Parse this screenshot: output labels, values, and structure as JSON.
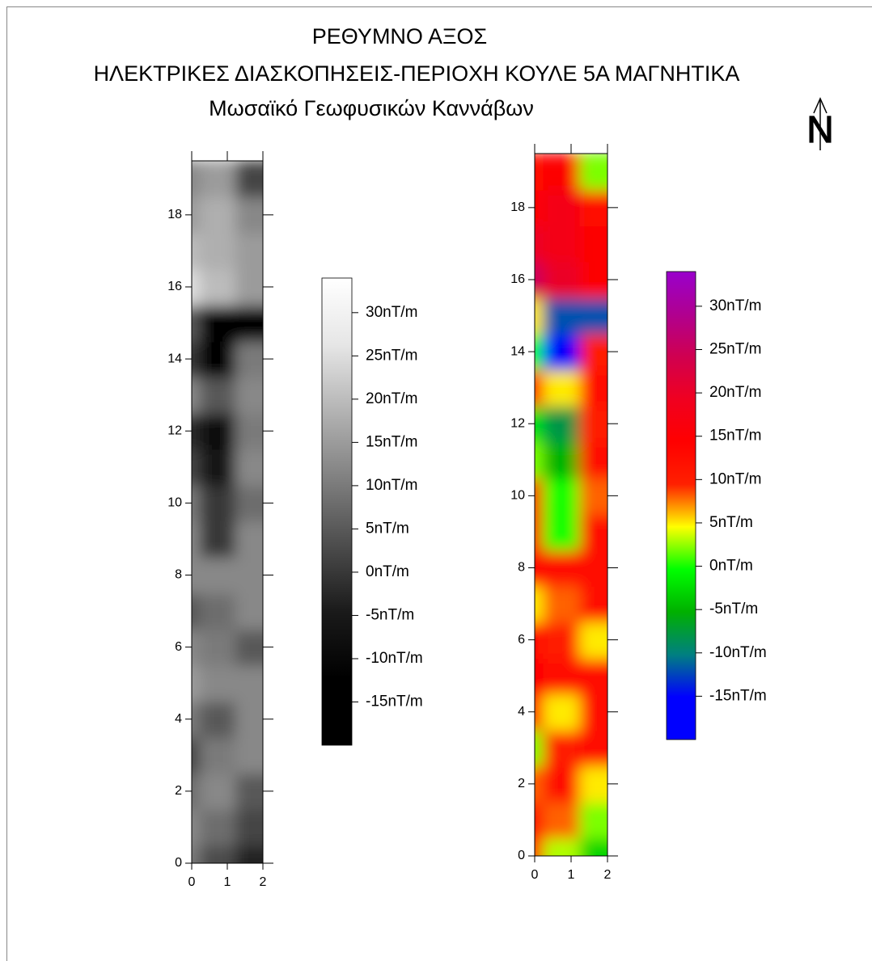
{
  "title": [
    "ΡΕΘΥΜΝΟ ΑΞΟΣ",
    "ΗΛΕΚΤΡΙΚΕΣ ΔΙΑΣΚΟΠΗΣΕΙΣ-ΠΕΡΙΟΧΗ ΚΟΥΛΕ 5Α ΜΑΓΝΗΤΙΚΑ",
    "Μωσαϊκό Γεωφυσικών Καννάβων"
  ],
  "north": "N",
  "chart_data": [
    {
      "type": "heatmap",
      "xlim": [
        0,
        2
      ],
      "ylim": [
        0,
        19.5
      ],
      "xticks": [
        0,
        1,
        2
      ],
      "yticks": [
        0,
        2,
        4,
        6,
        8,
        10,
        12,
        14,
        16,
        18
      ],
      "x": [
        0,
        1,
        2
      ],
      "y": [
        0,
        1,
        2,
        3,
        4,
        5,
        6,
        7,
        8,
        9,
        10,
        11,
        12,
        13,
        14,
        15,
        16,
        17,
        18,
        19
      ],
      "z": [
        [
          10,
          3,
          -3
        ],
        [
          12,
          8,
          2
        ],
        [
          8,
          12,
          5
        ],
        [
          2,
          10,
          12
        ],
        [
          10,
          5,
          12
        ],
        [
          15,
          12,
          12
        ],
        [
          12,
          10,
          5
        ],
        [
          5,
          8,
          12
        ],
        [
          12,
          12,
          12
        ],
        [
          12,
          0,
          12
        ],
        [
          10,
          0,
          8
        ],
        [
          2,
          -5,
          12
        ],
        [
          -2,
          -8,
          10
        ],
        [
          12,
          5,
          12
        ],
        [
          0,
          -15,
          10
        ],
        [
          5,
          -12,
          -12
        ],
        [
          25,
          20,
          15
        ],
        [
          20,
          18,
          15
        ],
        [
          15,
          18,
          12
        ],
        [
          12,
          15,
          2
        ]
      ],
      "zlim": [
        -20,
        34
      ],
      "zticks": [
        {
          "value": 30,
          "label": "30nT/m"
        },
        {
          "value": 25,
          "label": "25nT/m"
        },
        {
          "value": 20,
          "label": "20nT/m"
        },
        {
          "value": 15,
          "label": "15nT/m"
        },
        {
          "value": 10,
          "label": "10nT/m"
        },
        {
          "value": 5,
          "label": "5nT/m"
        },
        {
          "value": 0,
          "label": "0nT/m"
        },
        {
          "value": -5,
          "label": "-5nT/m"
        },
        {
          "value": -10,
          "label": "-10nT/m"
        },
        {
          "value": -15,
          "label": "-15nT/m"
        }
      ],
      "colormap": [
        "#000000",
        "#000000",
        "#1a1a1a",
        "#4d4d4d",
        "#808080",
        "#b3b3b3",
        "#e6e6e6",
        "#ffffff"
      ]
    },
    {
      "type": "heatmap",
      "xlim": [
        0,
        2
      ],
      "ylim": [
        0,
        19.5
      ],
      "xticks": [
        0,
        1,
        2
      ],
      "yticks": [
        0,
        2,
        4,
        6,
        8,
        10,
        12,
        14,
        16,
        18
      ],
      "x": [
        0,
        1,
        2
      ],
      "y": [
        0,
        1,
        2,
        3,
        4,
        5,
        6,
        7,
        8,
        9,
        10,
        11,
        12,
        13,
        14,
        15,
        16,
        17,
        18,
        19
      ],
      "z": [
        [
          10,
          3,
          -3
        ],
        [
          12,
          8,
          2
        ],
        [
          8,
          12,
          5
        ],
        [
          2,
          10,
          12
        ],
        [
          10,
          5,
          12
        ],
        [
          15,
          12,
          12
        ],
        [
          12,
          10,
          5
        ],
        [
          5,
          8,
          12
        ],
        [
          12,
          12,
          12
        ],
        [
          12,
          0,
          12
        ],
        [
          10,
          0,
          8
        ],
        [
          2,
          -5,
          12
        ],
        [
          -2,
          -8,
          10
        ],
        [
          12,
          5,
          12
        ],
        [
          0,
          -15,
          10
        ],
        [
          5,
          -12,
          -12
        ],
        [
          25,
          20,
          15
        ],
        [
          20,
          18,
          15
        ],
        [
          15,
          18,
          12
        ],
        [
          12,
          15,
          2
        ]
      ],
      "zlim": [
        -20,
        34
      ],
      "zticks": [
        {
          "value": 30,
          "label": "30nT/m"
        },
        {
          "value": 25,
          "label": "25nT/m"
        },
        {
          "value": 20,
          "label": "20nT/m"
        },
        {
          "value": 15,
          "label": "15nT/m"
        },
        {
          "value": 10,
          "label": "10nT/m"
        },
        {
          "value": 5,
          "label": "5nT/m"
        },
        {
          "value": 0,
          "label": "0nT/m"
        },
        {
          "value": -5,
          "label": "-5nT/m"
        },
        {
          "value": -10,
          "label": "-10nT/m"
        },
        {
          "value": -15,
          "label": "-15nT/m"
        }
      ],
      "colormap": [
        "#0000ff",
        "#0000ff",
        "#008080",
        "#00b000",
        "#00ff00",
        "#ffff00",
        "#ff2000",
        "#ff0000",
        "#f00020",
        "#d00050",
        "#b00090",
        "#9900cc"
      ]
    }
  ]
}
